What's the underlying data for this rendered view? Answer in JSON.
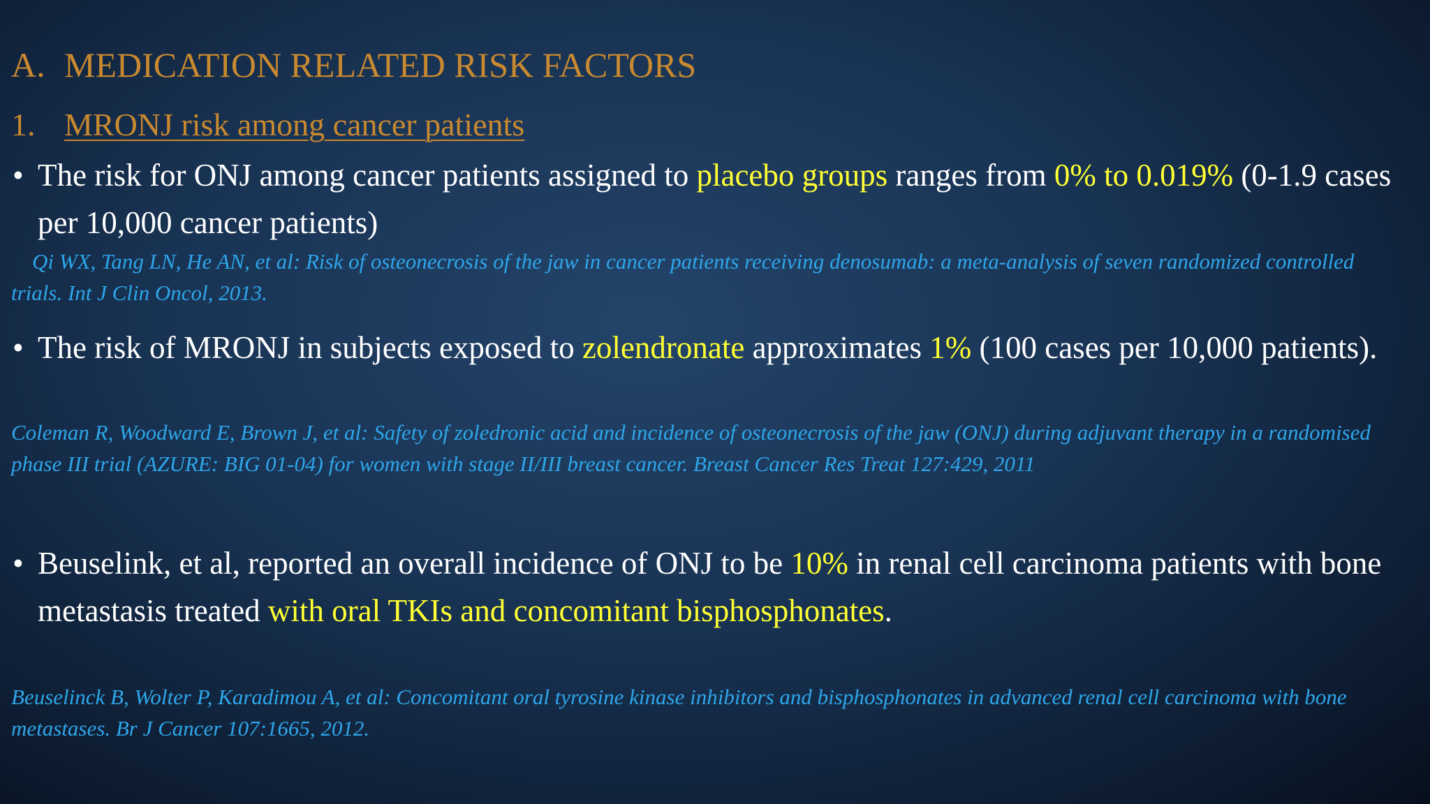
{
  "heading": {
    "number": "A.",
    "text": "MEDICATION RELATED RISK FACTORS"
  },
  "subheading": {
    "number": "1.",
    "text": "MRONJ risk among cancer patients"
  },
  "bullets": [
    {
      "segments": [
        {
          "text": "The risk for ONJ among cancer patients assigned to ",
          "highlight": false
        },
        {
          "text": "placebo groups",
          "highlight": true
        },
        {
          "text": " ranges from ",
          "highlight": false
        },
        {
          "text": "0% to 0.019%",
          "highlight": true
        },
        {
          "text": " (0-1.9 cases per 10,000 cancer patients)",
          "highlight": false
        }
      ],
      "citation": "Qi WX, Tang LN, He AN, et al: Risk of osteonecrosis of the jaw in cancer patients receiving denosumab: a meta-analysis of seven randomized controlled trials. Int J Clin Oncol, 2013."
    },
    {
      "segments": [
        {
          "text": "The risk of MRONJ in subjects exposed to ",
          "highlight": false
        },
        {
          "text": "zolendronate",
          "highlight": true
        },
        {
          "text": " approximates ",
          "highlight": false
        },
        {
          "text": "1%",
          "highlight": true
        },
        {
          "text": " (100 cases per 10,000 patients).",
          "highlight": false
        }
      ],
      "citation": "Coleman R, Woodward E, Brown J, et al: Safety of zoledronic acid and incidence of osteonecrosis of the jaw (ONJ) during adjuvant therapy in a randomised phase III trial (AZURE: BIG 01-04) for women with stage II/III breast cancer. Breast Cancer Res Treat 127:429, 2011"
    },
    {
      "segments": [
        {
          "text": "Beuselink, et al, reported an overall incidence of ONJ to be ",
          "highlight": false
        },
        {
          "text": "10%",
          "highlight": true
        },
        {
          "text": " in renal cell carcinoma patients with bone metastasis treated ",
          "highlight": false
        },
        {
          "text": "with oral TKIs and concomitant bisphosphonates",
          "highlight": true
        },
        {
          "text": ".",
          "highlight": false
        }
      ],
      "citation": "Beuselinck B, Wolter P, Karadimou A, et al: Concomitant oral tyrosine kinase inhibitors and bisphosphonates in advanced renal cell carcinoma with bone metastases. Br J Cancer 107:1665, 2012."
    }
  ]
}
